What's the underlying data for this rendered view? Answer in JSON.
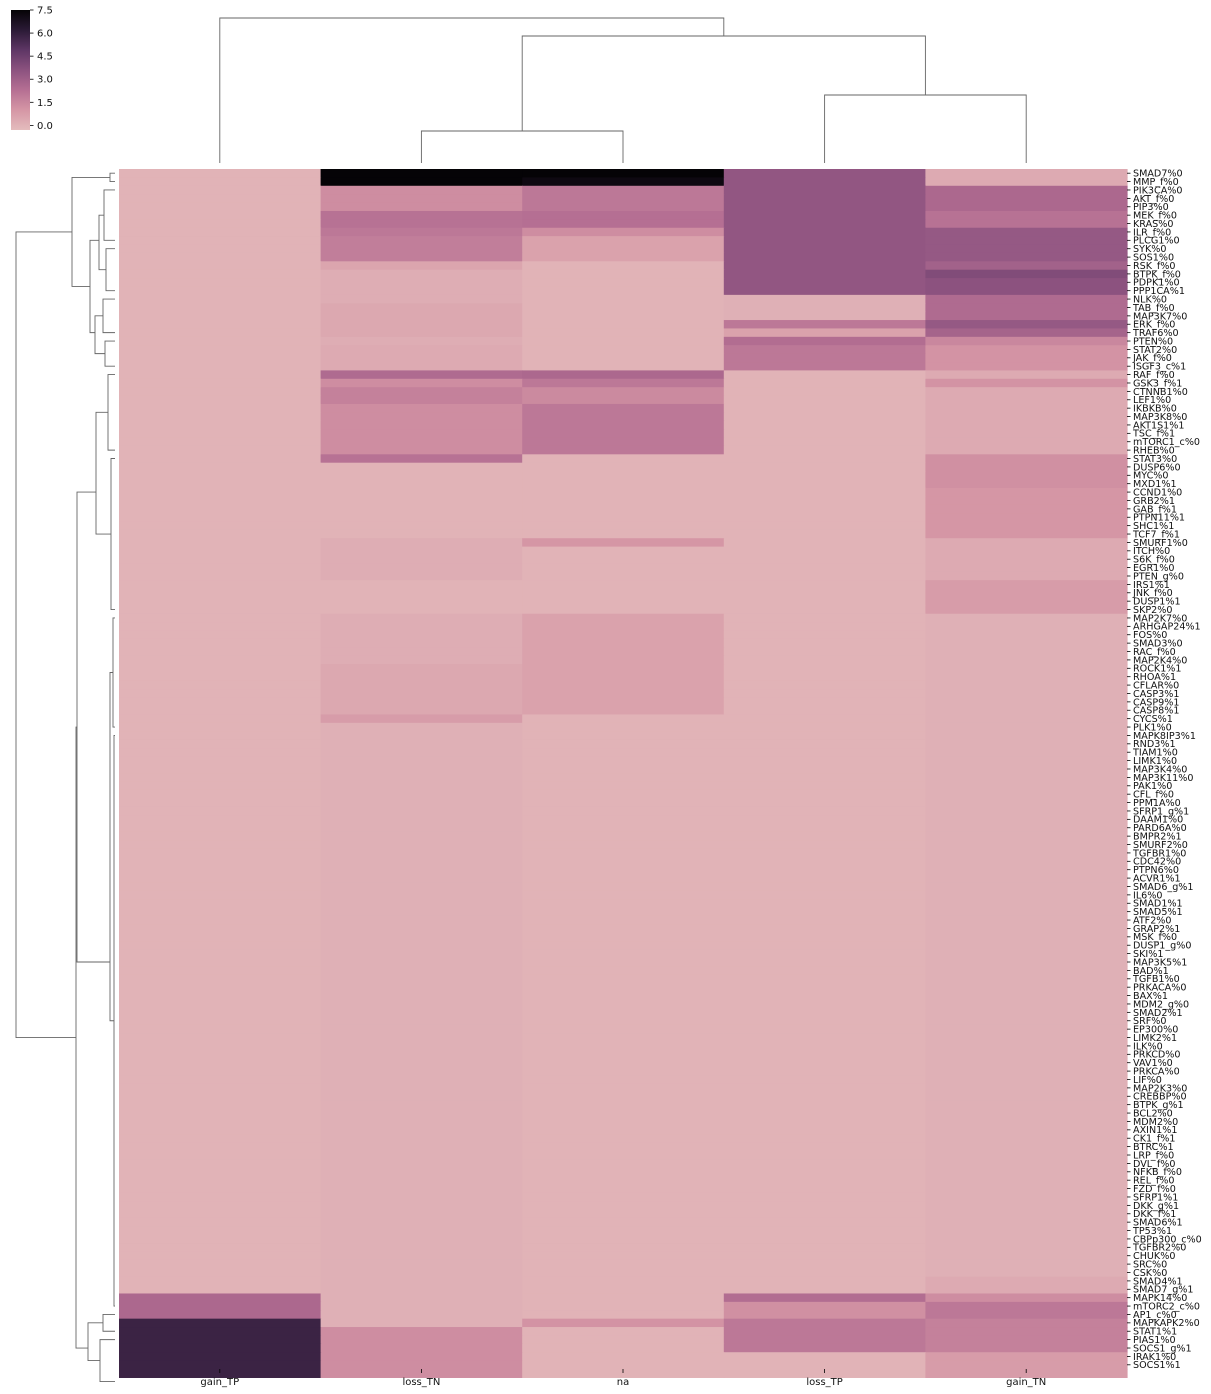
{
  "chart_data": {
    "type": "heatmap",
    "title": "",
    "columns": [
      "gain_TP",
      "loss_TN",
      "na",
      "loss_TP",
      "gain_TN"
    ],
    "rows": [
      "SMAD7%0",
      "MMP_f%0",
      "PIK3CA%0",
      "AKT_f%0",
      "PIP3%0",
      "MEK_f%0",
      "KRAS%0",
      "ILR_f%0",
      "PLCG1%0",
      "SYK%0",
      "SOS1%0",
      "RSK_f%0",
      "BTPK_f%0",
      "PDPK1%0",
      "PPP1CA%1",
      "NLK%0",
      "TAB_f%0",
      "MAP3K7%0",
      "ERK_f%0",
      "TRAF6%0",
      "PTEN%0",
      "STAT2%0",
      "JAK_f%0",
      "ISGF3_c%1",
      "RAF_f%0",
      "GSK3_f%1",
      "CTNNB1%0",
      "LEF1%0",
      "IKBKB%0",
      "MAP3K8%0",
      "AKT1S1%1",
      "TSC_f%1",
      "mTORC1_c%0",
      "RHEB%0",
      "STAT3%0",
      "DUSP6%0",
      "MYC%0",
      "MXD1%1",
      "CCND1%0",
      "GRB2%1",
      "GAB_f%1",
      "PTPN11%1",
      "SHC1%1",
      "TCF7_f%1",
      "SMURF1%0",
      "ITCH%0",
      "S6K_f%0",
      "EGR1%0",
      "PTEN_g%0",
      "IRS1%1",
      "JNK_f%0",
      "DUSP1%1",
      "SKP2%0",
      "MAP2K7%0",
      "ARHGAP24%1",
      "FOS%0",
      "SMAD3%0",
      "RAC_f%0",
      "MAP2K4%0",
      "ROCK1%1",
      "RHOA%1",
      "CFLAR%0",
      "CASP3%1",
      "CASP9%1",
      "CASP8%1",
      "CYCS%1",
      "PLK1%0",
      "MAPK8IP3%1",
      "RND3%1",
      "TIAM1%0",
      "LIMK1%0",
      "MAP3K4%0",
      "MAP3K11%0",
      "PAK1%0",
      "CFL_f%0",
      "PPM1A%0",
      "SFRP1_g%1",
      "DAAM1%0",
      "PARD6A%0",
      "BMPR2%1",
      "SMURF2%0",
      "TGFBR1%0",
      "CDC42%0",
      "PTPN6%0",
      "ACVR1%1",
      "SMAD6_g%1",
      "IL6%0",
      "SMAD1%1",
      "SMAD5%1",
      "ATF2%0",
      "GRAP2%1",
      "MSK_f%0",
      "DUSP1_g%0",
      "SKI%1",
      "MAP3K5%1",
      "BAD%1",
      "TGFB1%0",
      "PRKACA%0",
      "BAX%1",
      "MDM2_g%0",
      "SMAD2%1",
      "SRF%0",
      "EP300%0",
      "LIMK2%1",
      "ILK%0",
      "PRKCD%0",
      "VAV1%0",
      "PRKCA%0",
      "LIF%0",
      "MAP2K3%0",
      "CREBBP%0",
      "BTPK_g%1",
      "BCL2%0",
      "MDM2%0",
      "AXIN1%1",
      "CK1_f%1",
      "BTRC%1",
      "LRP_f%0",
      "DVL_f%0",
      "NFKB_f%0",
      "REL_f%0",
      "FZD_f%0",
      "SFRP1%1",
      "DKK_g%1",
      "DKK_f%1",
      "SMAD6%1",
      "TP53%1",
      "CBPp300_c%0",
      "TGFBR2%0",
      "CHUK%0",
      "SRC%0",
      "CSK%0",
      "SMAD4%1",
      "SMAD7_g%1",
      "MAPK14%0",
      "mTORC2_c%0",
      "AP1_c%0",
      "MAPKAPK2%0",
      "STAT1%1",
      "PIAS1%0",
      "SOCS1_g%1",
      "IRAK1%0",
      "SOCS1%1"
    ],
    "values": [
      [
        0,
        7.5,
        7.5,
        3.4,
        0.3
      ],
      [
        0,
        7.5,
        7.2,
        3.4,
        0.3
      ],
      [
        0,
        1.3,
        2.0,
        3.4,
        2.6
      ],
      [
        0,
        1.3,
        2.0,
        3.4,
        2.6
      ],
      [
        0,
        1.3,
        2.0,
        3.4,
        2.6
      ],
      [
        0,
        2.2,
        2.3,
        3.4,
        2.2
      ],
      [
        0,
        2.2,
        2.3,
        3.4,
        2.2
      ],
      [
        0,
        2.0,
        1.3,
        3.4,
        3.3
      ],
      [
        0,
        1.8,
        0.6,
        3.4,
        3.3
      ],
      [
        0,
        1.8,
        0.6,
        3.4,
        3.3
      ],
      [
        0,
        1.8,
        0.6,
        3.4,
        3.3
      ],
      [
        0,
        0.5,
        0,
        3.4,
        2.9
      ],
      [
        0,
        0.2,
        0,
        3.4,
        3.9
      ],
      [
        0,
        0.2,
        0,
        3.4,
        3.6
      ],
      [
        0,
        0.2,
        0,
        3.4,
        3.6
      ],
      [
        0,
        0.2,
        0,
        0.1,
        2.5
      ],
      [
        0,
        0.4,
        0,
        0.1,
        2.5
      ],
      [
        0,
        0.4,
        0,
        0.1,
        2.5
      ],
      [
        0,
        0.4,
        0,
        2.0,
        3.3
      ],
      [
        0,
        0.4,
        0,
        0.6,
        2.8
      ],
      [
        0,
        0.2,
        0,
        2.4,
        1.5
      ],
      [
        0,
        0.3,
        0,
        2.0,
        1.1
      ],
      [
        0,
        0.3,
        0,
        2.0,
        1.1
      ],
      [
        0,
        0.3,
        0,
        2.0,
        1.1
      ],
      [
        0,
        2.5,
        2.6,
        0,
        0.3
      ],
      [
        0,
        1.3,
        2.0,
        0,
        1.1
      ],
      [
        0,
        1.7,
        1.4,
        0,
        0.3
      ],
      [
        0,
        1.7,
        1.4,
        0,
        0.3
      ],
      [
        0,
        1.3,
        2.0,
        0,
        0.3
      ],
      [
        0,
        1.3,
        2.0,
        0,
        0.3
      ],
      [
        0,
        1.3,
        2.0,
        0,
        0.3
      ],
      [
        0,
        1.3,
        2.0,
        0,
        0.3
      ],
      [
        0,
        1.3,
        2.0,
        0,
        0.3
      ],
      [
        0,
        1.3,
        2.0,
        0,
        0.3
      ],
      [
        0,
        2.2,
        0,
        0,
        1.2
      ],
      [
        0,
        0,
        0,
        0,
        1.2
      ],
      [
        0,
        0,
        0,
        0,
        1.2
      ],
      [
        0,
        0,
        0,
        0,
        1.2
      ],
      [
        0,
        0,
        0,
        0,
        1.0
      ],
      [
        0,
        0,
        0,
        0,
        1.0
      ],
      [
        0,
        0,
        0,
        0,
        1.0
      ],
      [
        0,
        0,
        0,
        0,
        1.0
      ],
      [
        0,
        0,
        0,
        0,
        1.0
      ],
      [
        0,
        0,
        0,
        0,
        1.0
      ],
      [
        0,
        0.2,
        1.0,
        0,
        0.3
      ],
      [
        0,
        0.2,
        0,
        0,
        0.3
      ],
      [
        0,
        0.2,
        0,
        0,
        0.3
      ],
      [
        0,
        0.2,
        0,
        0,
        0.3
      ],
      [
        0,
        0.2,
        0,
        0,
        0.3
      ],
      [
        0,
        0,
        0,
        0,
        0.8
      ],
      [
        0,
        0,
        0,
        0,
        0.8
      ],
      [
        0,
        0,
        0,
        0,
        0.8
      ],
      [
        0,
        0,
        0,
        0,
        0.8
      ],
      [
        0,
        0.2,
        0.6,
        0,
        0.1
      ],
      [
        0,
        0.2,
        0.6,
        0,
        0.1
      ],
      [
        0,
        0.2,
        0.6,
        0,
        0.1
      ],
      [
        0,
        0.2,
        0.6,
        0,
        0.1
      ],
      [
        0,
        0.2,
        0.6,
        0,
        0.1
      ],
      [
        0,
        0.2,
        0.6,
        0,
        0.1
      ],
      [
        0,
        0.4,
        0.6,
        0,
        0.1
      ],
      [
        0,
        0.4,
        0.6,
        0,
        0.1
      ],
      [
        0,
        0.4,
        0.6,
        0,
        0.1
      ],
      [
        0,
        0.4,
        0.6,
        0,
        0.1
      ],
      [
        0,
        0.4,
        0.6,
        0,
        0.1
      ],
      [
        0,
        0.4,
        0.6,
        0,
        0.1
      ],
      [
        0,
        0.8,
        0,
        0,
        0.1
      ],
      [
        0,
        0.1,
        0,
        0,
        0.1
      ],
      [
        0,
        0.1,
        0,
        0,
        0.1
      ],
      [
        0,
        0.1,
        0,
        0,
        0.1
      ],
      [
        0,
        0.1,
        0,
        0,
        0.1
      ],
      [
        0,
        0.1,
        0,
        0,
        0.1
      ],
      [
        0,
        0.1,
        0,
        0,
        0.1
      ],
      [
        0,
        0.1,
        0,
        0,
        0.1
      ],
      [
        0,
        0.1,
        0,
        0,
        0.1
      ],
      [
        0,
        0.1,
        0,
        0,
        0.1
      ],
      [
        0,
        0.1,
        0,
        0,
        0.1
      ],
      [
        0,
        0.1,
        0,
        0,
        0.1
      ],
      [
        0,
        0.1,
        0,
        0,
        0.1
      ],
      [
        0,
        0.1,
        0,
        0,
        0.1
      ],
      [
        0,
        0.1,
        0,
        0,
        0.1
      ],
      [
        0,
        0.1,
        0,
        0,
        0.1
      ],
      [
        0,
        0.1,
        0,
        0,
        0.1
      ],
      [
        0,
        0.1,
        0,
        0,
        0.1
      ],
      [
        0,
        0.1,
        0,
        0,
        0.1
      ],
      [
        0,
        0.1,
        0,
        0,
        0.1
      ],
      [
        0,
        0.1,
        0,
        0,
        0.1
      ],
      [
        0,
        0.1,
        0,
        0,
        0.1
      ],
      [
        0,
        0.1,
        0,
        0,
        0.1
      ],
      [
        0,
        0.1,
        0,
        0,
        0.1
      ],
      [
        0,
        0.1,
        0,
        0,
        0.1
      ],
      [
        0,
        0.1,
        0,
        0,
        0.1
      ],
      [
        0,
        0.1,
        0,
        0,
        0.1
      ],
      [
        0,
        0.1,
        0,
        0,
        0.1
      ],
      [
        0,
        0.1,
        0,
        0,
        0.1
      ],
      [
        0,
        0.1,
        0,
        0,
        0.1
      ],
      [
        0,
        0.1,
        0,
        0,
        0.1
      ],
      [
        0,
        0.1,
        0,
        0,
        0.1
      ],
      [
        0,
        0.1,
        0,
        0,
        0.1
      ],
      [
        0,
        0.1,
        0,
        0,
        0.1
      ],
      [
        0,
        0.1,
        0,
        0,
        0.1
      ],
      [
        0,
        0.1,
        0,
        0,
        0.1
      ],
      [
        0,
        0.1,
        0,
        0,
        0.1
      ],
      [
        0,
        0.1,
        0,
        0,
        0.1
      ],
      [
        0,
        0.1,
        0,
        0,
        0.1
      ],
      [
        0,
        0.1,
        0,
        0,
        0.1
      ],
      [
        0,
        0.1,
        0,
        0,
        0.1
      ],
      [
        0,
        0.1,
        0,
        0,
        0.1
      ],
      [
        0,
        0.1,
        0,
        0,
        0.1
      ],
      [
        0,
        0.1,
        0,
        0,
        0.1
      ],
      [
        0,
        0.1,
        0,
        0,
        0.1
      ],
      [
        0,
        0.1,
        0,
        0,
        0.1
      ],
      [
        0,
        0.1,
        0,
        0,
        0.1
      ],
      [
        0,
        0.1,
        0,
        0,
        0.1
      ],
      [
        0,
        0.1,
        0,
        0,
        0.1
      ],
      [
        0,
        0.1,
        0,
        0,
        0.1
      ],
      [
        0,
        0.1,
        0,
        0,
        0.1
      ],
      [
        0,
        0.1,
        0,
        0,
        0.1
      ],
      [
        0,
        0.1,
        0,
        0,
        0.1
      ],
      [
        0,
        0.1,
        0,
        0,
        0.1
      ],
      [
        0,
        0.1,
        0,
        0,
        0.1
      ],
      [
        0,
        0.1,
        0,
        0,
        0.1
      ],
      [
        0,
        0.1,
        0,
        0,
        0.1
      ],
      [
        0,
        0.1,
        0,
        0,
        0.1
      ],
      [
        0,
        0.1,
        0,
        0,
        0.1
      ],
      [
        0,
        0.1,
        0,
        0,
        0.1
      ],
      [
        0,
        0.1,
        0,
        0,
        0.1
      ],
      [
        0,
        0.1,
        0,
        0,
        0.1
      ],
      [
        0,
        0.1,
        0,
        0,
        0.1
      ],
      [
        0,
        0.1,
        0,
        0,
        0.1
      ],
      [
        0,
        0.1,
        0,
        0,
        0.1
      ],
      [
        0,
        0.1,
        0,
        0,
        0.1
      ],
      [
        0,
        0.1,
        0,
        0,
        0.1
      ],
      [
        0,
        0.1,
        0,
        0,
        0.3
      ],
      [
        0,
        0.1,
        0,
        0,
        0.3
      ],
      [
        2.6,
        0.1,
        0,
        2.4,
        1.3
      ],
      [
        2.6,
        0.1,
        0,
        1.2,
        2.0
      ],
      [
        2.6,
        0.1,
        0,
        1.2,
        2.0
      ],
      [
        5.8,
        0.1,
        1.1,
        2.0,
        1.7
      ],
      [
        5.8,
        1.3,
        0,
        2.0,
        1.7
      ],
      [
        5.8,
        1.3,
        0,
        2.0,
        1.7
      ],
      [
        5.8,
        1.3,
        0,
        2.0,
        1.7
      ],
      [
        5.8,
        1.3,
        0,
        0,
        0.8
      ],
      [
        5.8,
        1.3,
        0,
        0,
        0.8
      ],
      [
        5.8,
        1.3,
        0,
        0,
        0.8
      ]
    ],
    "vmin": -0.3,
    "vmax": 7.5,
    "colorbar": {
      "ticks": [
        0.0,
        1.5,
        3.0,
        4.5,
        6.0,
        7.5
      ],
      "tick_labels": [
        "0.0",
        "1.5",
        "3.0",
        "4.5",
        "6.0",
        "7.5"
      ],
      "colors": [
        "#e4bcbd",
        "#d596a5",
        "#b56f93",
        "#8c527f",
        "#5e3665",
        "#2b1a36",
        "#050306"
      ]
    },
    "dendrograms": {
      "columns": true,
      "rows": true
    }
  }
}
